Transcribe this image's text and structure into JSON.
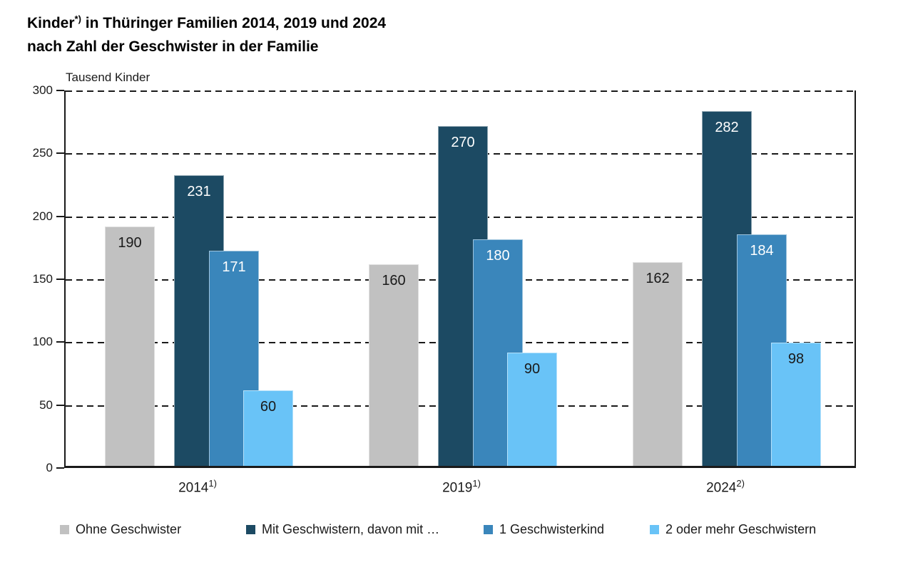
{
  "title": {
    "line1_before": "Kinder",
    "line1_footnote": "*)",
    "line1_after": " in Thüringer Familien 2014, 2019 und 2024",
    "line2": "nach Zahl der Geschwister in der Familie"
  },
  "chart_data": {
    "type": "bar",
    "title": "Kinder*) in Thüringer Familien 2014, 2019 und 2024 nach Zahl der Geschwister in der Familie",
    "ylabel": "Tausend Kinder",
    "xlabel": "",
    "ylim": [
      0,
      300
    ],
    "yticks": [
      0,
      50,
      100,
      150,
      200,
      250,
      300
    ],
    "grid": "dashed-horizontal",
    "legend_position": "bottom",
    "categories": [
      {
        "label": "2014",
        "footnote_marker": "1)"
      },
      {
        "label": "2019",
        "footnote_marker": "1)"
      },
      {
        "label": "2024",
        "footnote_marker": "2)"
      }
    ],
    "series": [
      {
        "name": "Ohne Geschwister",
        "color": "#c1c1c1",
        "value_label_color": "#1a1a1a",
        "values": [
          190,
          160,
          162
        ]
      },
      {
        "name": "Mit Geschwistern, davon mit …",
        "color": "#1c4a63",
        "value_label_color": "#ffffff",
        "values": [
          231,
          270,
          282
        ]
      },
      {
        "name": "1 Geschwisterkind",
        "color": "#3a86bb",
        "value_label_color": "#ffffff",
        "values": [
          171,
          180,
          184
        ]
      },
      {
        "name": "2 oder mehr Geschwistern",
        "color": "#69c3f7",
        "value_label_color": "#1a1a1a",
        "values": [
          60,
          90,
          98
        ]
      }
    ]
  }
}
